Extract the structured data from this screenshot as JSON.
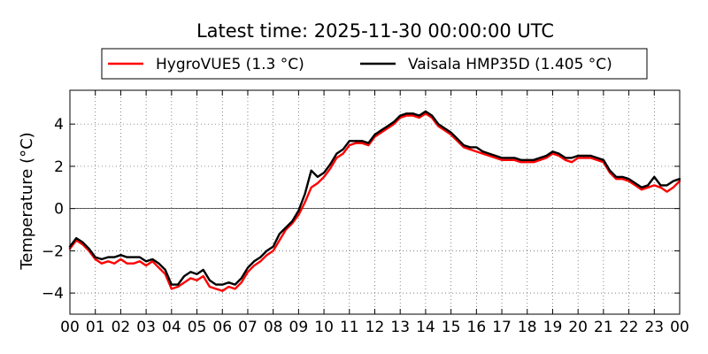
{
  "chart_data": {
    "type": "line",
    "title": "Latest time: 2025-11-30 00:00:00 UTC",
    "xlabel": "",
    "ylabel": "Temperature (°C)",
    "xlim": [
      0,
      24
    ],
    "ylim": [
      -5,
      5.6
    ],
    "x_ticks": [
      0,
      1,
      2,
      3,
      4,
      5,
      6,
      7,
      8,
      9,
      10,
      11,
      12,
      13,
      14,
      15,
      16,
      17,
      18,
      19,
      20,
      21,
      22,
      23,
      24
    ],
    "x_tick_labels": [
      "00",
      "01",
      "02",
      "03",
      "04",
      "05",
      "06",
      "07",
      "08",
      "09",
      "10",
      "11",
      "12",
      "13",
      "14",
      "15",
      "16",
      "17",
      "18",
      "19",
      "20",
      "21",
      "22",
      "23",
      "00"
    ],
    "y_ticks": [
      -4,
      -2,
      0,
      2,
      4
    ],
    "y_tick_labels": [
      "−4",
      "−2",
      "0",
      "2",
      "4"
    ],
    "grid": true,
    "zero_line": true,
    "legend_position": "top-center",
    "x": [
      0,
      0.25,
      0.5,
      0.75,
      1,
      1.25,
      1.5,
      1.75,
      2,
      2.25,
      2.5,
      2.75,
      3,
      3.25,
      3.5,
      3.75,
      4,
      4.25,
      4.5,
      4.75,
      5,
      5.25,
      5.5,
      5.75,
      6,
      6.25,
      6.5,
      6.75,
      7,
      7.25,
      7.5,
      7.75,
      8,
      8.25,
      8.5,
      8.75,
      9,
      9.25,
      9.5,
      9.75,
      10,
      10.25,
      10.5,
      10.75,
      11,
      11.25,
      11.5,
      11.75,
      12,
      12.25,
      12.5,
      12.75,
      13,
      13.25,
      13.5,
      13.75,
      14,
      14.25,
      14.5,
      14.75,
      15,
      15.25,
      15.5,
      15.75,
      16,
      16.25,
      16.5,
      16.75,
      17,
      17.25,
      17.5,
      17.75,
      18,
      18.25,
      18.5,
      18.75,
      19,
      19.25,
      19.5,
      19.75,
      20,
      20.25,
      20.5,
      20.75,
      21,
      21.25,
      21.5,
      21.75,
      22,
      22.25,
      22.5,
      22.75,
      23,
      23.25,
      23.5,
      23.75,
      24
    ],
    "series": [
      {
        "name": "HygroVUE5 (1.3 °C)",
        "color": "#ff0000",
        "values": [
          -1.9,
          -1.5,
          -1.7,
          -2.0,
          -2.4,
          -2.6,
          -2.5,
          -2.6,
          -2.4,
          -2.6,
          -2.6,
          -2.5,
          -2.7,
          -2.5,
          -2.8,
          -3.1,
          -3.8,
          -3.7,
          -3.5,
          -3.3,
          -3.4,
          -3.2,
          -3.7,
          -3.8,
          -3.9,
          -3.7,
          -3.8,
          -3.5,
          -3.0,
          -2.7,
          -2.5,
          -2.2,
          -2.0,
          -1.5,
          -1.0,
          -0.7,
          -0.3,
          0.3,
          1.0,
          1.2,
          1.5,
          1.9,
          2.4,
          2.6,
          3.0,
          3.1,
          3.1,
          3.0,
          3.4,
          3.6,
          3.8,
          4.0,
          4.3,
          4.4,
          4.4,
          4.3,
          4.5,
          4.3,
          3.9,
          3.7,
          3.5,
          3.2,
          2.9,
          2.8,
          2.7,
          2.6,
          2.5,
          2.4,
          2.3,
          2.3,
          2.3,
          2.2,
          2.2,
          2.2,
          2.3,
          2.4,
          2.6,
          2.5,
          2.3,
          2.2,
          2.4,
          2.4,
          2.4,
          2.3,
          2.2,
          1.7,
          1.4,
          1.4,
          1.3,
          1.1,
          0.9,
          1.0,
          1.1,
          1.0,
          0.8,
          1.0,
          1.3
        ]
      },
      {
        "name": "Vaisala HMP35D (1.405 °C)",
        "color": "#000000",
        "values": [
          -1.8,
          -1.4,
          -1.6,
          -1.9,
          -2.3,
          -2.4,
          -2.3,
          -2.3,
          -2.2,
          -2.3,
          -2.3,
          -2.3,
          -2.5,
          -2.4,
          -2.6,
          -2.9,
          -3.6,
          -3.6,
          -3.2,
          -3.0,
          -3.1,
          -2.9,
          -3.4,
          -3.6,
          -3.6,
          -3.5,
          -3.6,
          -3.3,
          -2.8,
          -2.5,
          -2.3,
          -2.0,
          -1.8,
          -1.2,
          -0.9,
          -0.6,
          -0.1,
          0.7,
          1.8,
          1.5,
          1.7,
          2.1,
          2.6,
          2.8,
          3.2,
          3.2,
          3.2,
          3.1,
          3.5,
          3.7,
          3.9,
          4.1,
          4.4,
          4.5,
          4.5,
          4.4,
          4.6,
          4.4,
          4.0,
          3.8,
          3.6,
          3.3,
          3.0,
          2.9,
          2.9,
          2.7,
          2.6,
          2.5,
          2.4,
          2.4,
          2.4,
          2.3,
          2.3,
          2.3,
          2.4,
          2.5,
          2.7,
          2.6,
          2.4,
          2.4,
          2.5,
          2.5,
          2.5,
          2.4,
          2.3,
          1.8,
          1.5,
          1.5,
          1.4,
          1.2,
          1.0,
          1.1,
          1.5,
          1.1,
          1.1,
          1.3,
          1.4
        ]
      }
    ]
  }
}
